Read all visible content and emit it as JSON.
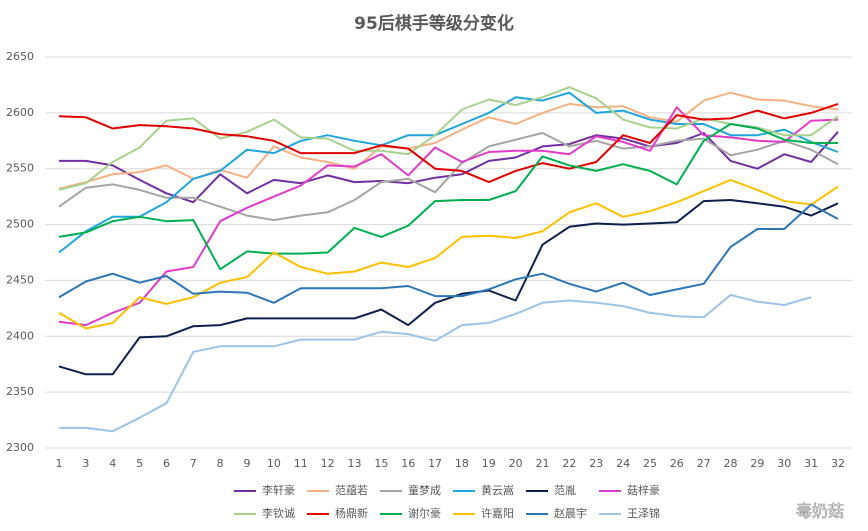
{
  "chart_data": {
    "type": "line",
    "title": "95后棋手等级分变化",
    "categories": [
      "1",
      "3",
      "4",
      "5",
      "6",
      "7",
      "8",
      "9",
      "10",
      "11",
      "12",
      "13",
      "15",
      "16",
      "17",
      "18",
      "19",
      "20",
      "21",
      "22",
      "23",
      "24",
      "25",
      "26",
      "27",
      "28",
      "29",
      "30",
      "31",
      "32"
    ],
    "ylim": [
      2300,
      2650
    ],
    "yticks": [
      2300,
      2350,
      2400,
      2450,
      2500,
      2550,
      2600,
      2650
    ],
    "grid": true,
    "legend": "bottom",
    "watermark": "毒奶菇",
    "series": [
      {
        "name": "李轩豪",
        "color": "#7030a0",
        "values": [
          2557,
          2557,
          2553,
          2540,
          2528,
          2520,
          2545,
          2528,
          2540,
          2537,
          2544,
          2538,
          2539,
          2537,
          2542,
          2545,
          2557,
          2560,
          2570,
          2572,
          2580,
          2577,
          2570,
          2573,
          2582,
          2557,
          2550,
          2563,
          2556,
          2583
        ]
      },
      {
        "name": "范蕴若",
        "color": "#f4b183",
        "values": [
          2532,
          2538,
          2545,
          2547,
          2553,
          2541,
          2549,
          2542,
          2570,
          2560,
          2556,
          2550,
          2570,
          2568,
          2573,
          2585,
          2596,
          2590,
          2600,
          2608,
          2605,
          2606,
          2596,
          2592,
          2611,
          2618,
          2612,
          2611,
          2606,
          2603
        ]
      },
      {
        "name": "童梦成",
        "color": "#a5a5a5",
        "values": [
          2516,
          2533,
          2536,
          2531,
          2524,
          2524,
          2516,
          2508,
          2504,
          2508,
          2511,
          2522,
          2538,
          2541,
          2529,
          2555,
          2570,
          2576,
          2582,
          2570,
          2575,
          2568,
          2570,
          2575,
          2577,
          2562,
          2567,
          2575,
          2567,
          2554
        ]
      },
      {
        "name": "黄云嵩",
        "color": "#1fa5dc",
        "values": [
          2475,
          2494,
          2507,
          2507,
          2520,
          2541,
          2548,
          2567,
          2564,
          2575,
          2580,
          2575,
          2571,
          2580,
          2580,
          2590,
          2600,
          2614,
          2611,
          2618,
          2600,
          2602,
          2594,
          2590,
          2590,
          2580,
          2580,
          2585,
          2574,
          2565
        ]
      },
      {
        "name": "范胤",
        "color": "#0d1f4c",
        "values": [
          2373,
          2366,
          2366,
          2399,
          2400,
          2409,
          2410,
          2416,
          2416,
          2416,
          2416,
          2416,
          2424,
          2410,
          2430,
          2438,
          2441,
          2432,
          2482,
          2498,
          2501,
          2500,
          2501,
          2502,
          2521,
          2522,
          2519,
          2516,
          2508,
          2519
        ]
      },
      {
        "name": "菇梓豪",
        "color": "#e03cc8",
        "values": [
          2413,
          2410,
          2421,
          2430,
          2458,
          2462,
          2503,
          2515,
          2525,
          2535,
          2553,
          2552,
          2563,
          2544,
          2569,
          2556,
          2565,
          2566,
          2566,
          2563,
          2579,
          2574,
          2566,
          2605,
          2580,
          2578,
          2575,
          2574,
          2593,
          2594
        ]
      },
      {
        "name": "李钦诚",
        "color": "#a9d18e",
        "values": [
          2531,
          2537,
          2556,
          2569,
          2593,
          2595,
          2577,
          2583,
          2594,
          2578,
          2577,
          2566,
          2566,
          2563,
          2580,
          2603,
          2612,
          2607,
          2614,
          2623,
          2613,
          2594,
          2587,
          2586,
          2595,
          2590,
          2587,
          2580,
          2580,
          2597
        ]
      },
      {
        "name": "杨鼎新",
        "color": "#e00000",
        "values": [
          2597,
          2596,
          2586,
          2589,
          2588,
          2586,
          2581,
          2579,
          2575,
          2564,
          2564,
          2564,
          2571,
          2568,
          2550,
          2548,
          2538,
          2548,
          2555,
          2550,
          2556,
          2580,
          2573,
          2598,
          2594,
          2595,
          2602,
          2595,
          2600,
          2608
        ]
      },
      {
        "name": "谢尔豪",
        "color": "#00b050",
        "values": [
          2489,
          2493,
          2503,
          2507,
          2503,
          2504,
          2460,
          2476,
          2474,
          2474,
          2475,
          2497,
          2489,
          2499,
          2521,
          2522,
          2522,
          2530,
          2561,
          2553,
          2548,
          2554,
          2548,
          2536,
          2575,
          2590,
          2586,
          2576,
          2573,
          2573
        ]
      },
      {
        "name": "许嘉阳",
        "color": "#ffc000",
        "values": [
          2421,
          2407,
          2412,
          2435,
          2429,
          2435,
          2448,
          2453,
          2475,
          2462,
          2456,
          2458,
          2466,
          2462,
          2470,
          2489,
          2490,
          2488,
          2494,
          2511,
          2519,
          2507,
          2512,
          2520,
          2530,
          2540,
          2531,
          2521,
          2518,
          2534
        ]
      },
      {
        "name": "赵晨宇",
        "color": "#2e75b6",
        "values": [
          2435,
          2449,
          2456,
          2448,
          2454,
          2438,
          2440,
          2439,
          2430,
          2443,
          2443,
          2443,
          2443,
          2445,
          2436,
          2436,
          2442,
          2451,
          2456,
          2447,
          2440,
          2448,
          2437,
          2442,
          2447,
          2480,
          2496,
          2496,
          2518,
          2505
        ]
      },
      {
        "name": "王泽锦",
        "color": "#9dc3e6",
        "values": [
          2318,
          2318,
          2315,
          2327,
          2340,
          2386,
          2391,
          2391,
          2391,
          2397,
          2397,
          2397,
          2404,
          2402,
          2396,
          2410,
          2412,
          2420,
          2430,
          2432,
          2430,
          2427,
          2421,
          2418,
          2417,
          2437,
          2431,
          2428,
          2435,
          null
        ]
      }
    ]
  }
}
